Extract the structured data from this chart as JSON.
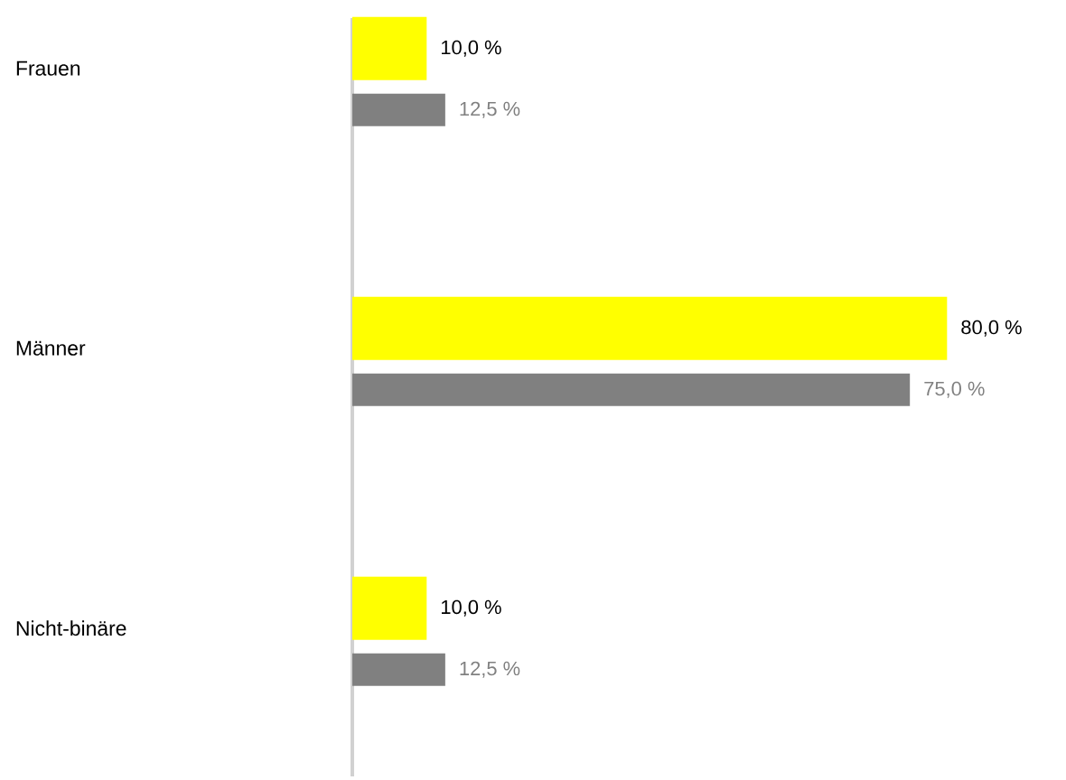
{
  "chart_data": {
    "type": "bar",
    "orientation": "horizontal",
    "categories": [
      "Frauen",
      "Männer",
      "Nicht-binäre"
    ],
    "series": [
      {
        "color": "#ffff00",
        "values": [
          10.0,
          80.0,
          10.0
        ],
        "value_labels": [
          "10,0 %",
          "80,0 %",
          "10,0 %"
        ]
      },
      {
        "color": "#808080",
        "values": [
          12.5,
          75.0,
          12.5
        ],
        "value_labels": [
          "12,5 %",
          "75,0 %",
          "12,5 %"
        ]
      }
    ],
    "tick_labels": "y"
  }
}
